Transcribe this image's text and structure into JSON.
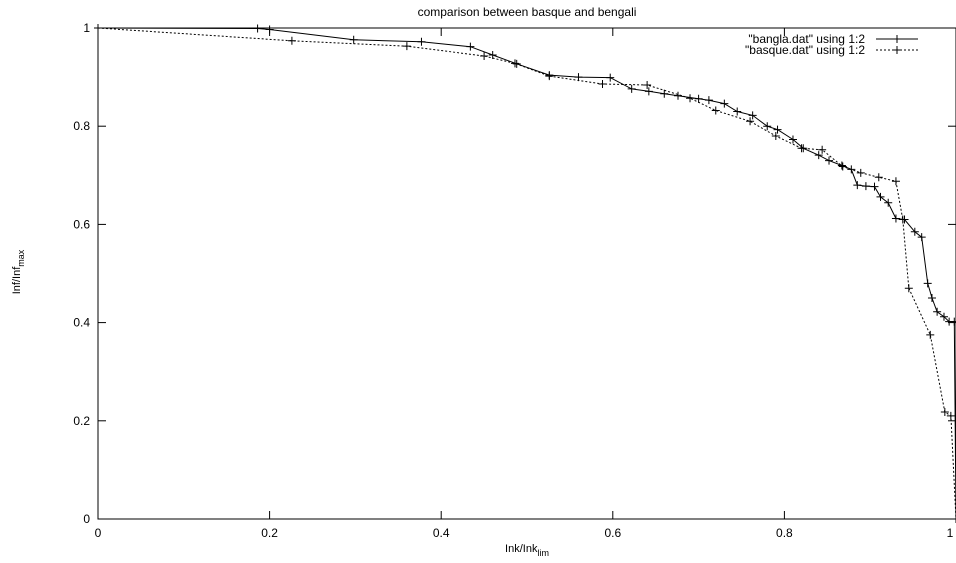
{
  "chart_data": {
    "type": "line",
    "title": "comparison between basque and bengali",
    "xlabel": "Ink/Ink",
    "xlabel_sub": "lim",
    "ylabel": "Inf/Inf",
    "ylabel_sub": "max",
    "xlim": [
      0,
      1
    ],
    "ylim": [
      0,
      1
    ],
    "xticks": [
      0,
      0.2,
      0.4,
      0.6,
      0.8,
      1
    ],
    "xtick_labels": [
      "0",
      "0.2",
      "0.4",
      "0.6",
      "0.8",
      "1"
    ],
    "yticks": [
      0,
      0.2,
      0.4,
      0.6,
      0.8,
      1
    ],
    "ytick_labels": [
      "0",
      "0.2",
      "0.4",
      "0.6",
      "0.8",
      "1"
    ],
    "grid": false,
    "legend_position": "top-right",
    "series": [
      {
        "name": "\"bangla.dat\" using 1:2",
        "style": "solid",
        "marker": "plus",
        "color": "#000000",
        "points": [
          [
            0.0,
            1.0
          ],
          [
            0.186,
            0.999
          ],
          [
            0.2,
            0.997
          ],
          [
            0.298,
            0.976
          ],
          [
            0.377,
            0.972
          ],
          [
            0.434,
            0.962
          ],
          [
            0.46,
            0.945
          ],
          [
            0.488,
            0.927
          ],
          [
            0.526,
            0.904
          ],
          [
            0.56,
            0.9
          ],
          [
            0.597,
            0.899
          ],
          [
            0.622,
            0.876
          ],
          [
            0.642,
            0.871
          ],
          [
            0.66,
            0.866
          ],
          [
            0.676,
            0.862
          ],
          [
            0.7,
            0.856
          ],
          [
            0.712,
            0.853
          ],
          [
            0.73,
            0.846
          ],
          [
            0.745,
            0.83
          ],
          [
            0.763,
            0.822
          ],
          [
            0.78,
            0.8
          ],
          [
            0.792,
            0.793
          ],
          [
            0.81,
            0.773
          ],
          [
            0.822,
            0.755
          ],
          [
            0.84,
            0.741
          ],
          [
            0.852,
            0.73
          ],
          [
            0.867,
            0.72
          ],
          [
            0.878,
            0.712
          ],
          [
            0.885,
            0.68
          ],
          [
            0.895,
            0.678
          ],
          [
            0.905,
            0.677
          ],
          [
            0.912,
            0.656
          ],
          [
            0.921,
            0.644
          ],
          [
            0.93,
            0.612
          ],
          [
            0.94,
            0.61
          ],
          [
            0.952,
            0.585
          ],
          [
            0.96,
            0.574
          ],
          [
            0.967,
            0.48
          ],
          [
            0.972,
            0.45
          ],
          [
            0.978,
            0.422
          ],
          [
            0.986,
            0.412
          ],
          [
            0.992,
            0.402
          ],
          [
            0.998,
            0.402
          ],
          [
            1.0,
            0.0
          ]
        ]
      },
      {
        "name": "\"basque.dat\" using 1:2",
        "style": "dotted",
        "marker": "plus",
        "color": "#000000",
        "points": [
          [
            0.0,
            1.0
          ],
          [
            0.226,
            0.974
          ],
          [
            0.36,
            0.963
          ],
          [
            0.45,
            0.943
          ],
          [
            0.486,
            0.928
          ],
          [
            0.526,
            0.902
          ],
          [
            0.588,
            0.886
          ],
          [
            0.64,
            0.884
          ],
          [
            0.69,
            0.857
          ],
          [
            0.72,
            0.832
          ],
          [
            0.76,
            0.81
          ],
          [
            0.79,
            0.78
          ],
          [
            0.82,
            0.755
          ],
          [
            0.844,
            0.752
          ],
          [
            0.868,
            0.718
          ],
          [
            0.889,
            0.705
          ],
          [
            0.91,
            0.696
          ],
          [
            0.93,
            0.688
          ],
          [
            0.938,
            0.61
          ],
          [
            0.945,
            0.47
          ],
          [
            0.97,
            0.375
          ],
          [
            0.987,
            0.218
          ],
          [
            0.994,
            0.21
          ],
          [
            1.0,
            0.0
          ]
        ]
      }
    ]
  }
}
